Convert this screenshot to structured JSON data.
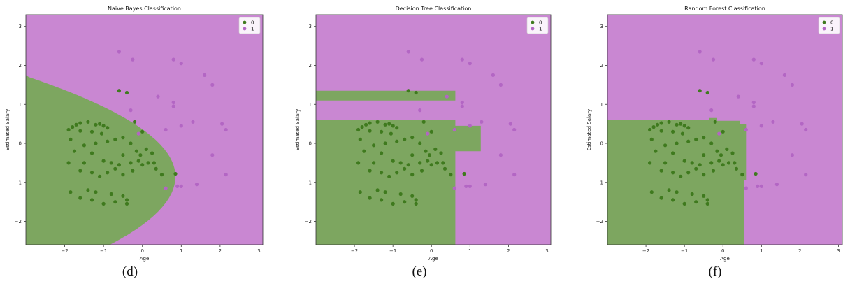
{
  "chart_data": [
    {
      "type": "scatter",
      "title": "Naive Bayes Classification",
      "xlabel": "Age",
      "ylabel": "Estimated Salary",
      "xlim": [
        -3,
        3.1
      ],
      "ylim": [
        -2.6,
        3.3
      ],
      "xticks": [
        -2,
        -1,
        0,
        1,
        2,
        3
      ],
      "yticks": [
        -2,
        -1,
        0,
        1,
        2,
        3
      ],
      "legend": {
        "position": "top-right",
        "entries": [
          "0",
          "1"
        ]
      },
      "region_colors": {
        "0": "#7da660",
        "1": "#c987d2"
      },
      "point_colors": {
        "0": "#3f7a1e",
        "1": "#b366c4"
      },
      "caption": "(d)",
      "series": [
        {
          "name": "0",
          "points": [
            [
              -1.9,
              0.35
            ],
            [
              -1.8,
              0.42
            ],
            [
              -1.7,
              0.48
            ],
            [
              -1.6,
              0.52
            ],
            [
              -1.4,
              0.55
            ],
            [
              -1.2,
              0.48
            ],
            [
              -1.1,
              0.5
            ],
            [
              -1.0,
              0.45
            ],
            [
              -0.9,
              0.4
            ],
            [
              -1.05,
              0.25
            ],
            [
              -1.3,
              0.3
            ],
            [
              -1.6,
              0.32
            ],
            [
              -1.85,
              0.1
            ],
            [
              -1.5,
              -0.05
            ],
            [
              -1.2,
              0.0
            ],
            [
              -0.9,
              0.05
            ],
            [
              -0.7,
              0.1
            ],
            [
              -0.5,
              0.15
            ],
            [
              -0.3,
              0.0
            ],
            [
              -0.15,
              -0.2
            ],
            [
              -0.05,
              -0.3
            ],
            [
              0.1,
              -0.15
            ],
            [
              0.25,
              -0.25
            ],
            [
              0.3,
              -0.5
            ],
            [
              0.15,
              -0.5
            ],
            [
              -0.1,
              -0.45
            ],
            [
              -0.3,
              -0.5
            ],
            [
              -0.5,
              -0.3
            ],
            [
              -0.6,
              -0.55
            ],
            [
              -0.8,
              -0.5
            ],
            [
              -1.0,
              -0.45
            ],
            [
              -1.3,
              -0.25
            ],
            [
              -1.5,
              -0.5
            ],
            [
              -1.75,
              -0.2
            ],
            [
              -1.9,
              -0.5
            ],
            [
              -1.6,
              -0.7
            ],
            [
              -1.3,
              -0.75
            ],
            [
              -1.1,
              -0.85
            ],
            [
              -0.9,
              -0.75
            ],
            [
              -0.7,
              -0.65
            ],
            [
              -0.5,
              -0.8
            ],
            [
              -0.25,
              -0.7
            ],
            [
              0.0,
              -0.55
            ],
            [
              0.35,
              -0.65
            ],
            [
              0.5,
              -0.8
            ],
            [
              -1.4,
              -1.2
            ],
            [
              -1.2,
              -1.25
            ],
            [
              -0.8,
              -1.3
            ],
            [
              -0.5,
              -1.35
            ],
            [
              -0.4,
              -1.45
            ],
            [
              -0.4,
              -1.55
            ],
            [
              -0.7,
              -1.5
            ],
            [
              -1.0,
              -1.55
            ],
            [
              -1.3,
              -1.45
            ],
            [
              -1.6,
              -1.4
            ],
            [
              -1.85,
              -1.25
            ],
            [
              -0.6,
              1.35
            ],
            [
              -0.4,
              1.3
            ],
            [
              0.0,
              0.3
            ],
            [
              -0.2,
              0.55
            ],
            [
              0.85,
              -0.78
            ]
          ]
        },
        {
          "name": "1",
          "points": [
            [
              -0.6,
              2.35
            ],
            [
              -0.25,
              2.15
            ],
            [
              0.8,
              2.15
            ],
            [
              1.0,
              2.05
            ],
            [
              1.6,
              1.75
            ],
            [
              1.8,
              1.5
            ],
            [
              -0.3,
              0.85
            ],
            [
              0.4,
              1.2
            ],
            [
              0.8,
              1.05
            ],
            [
              0.8,
              0.95
            ],
            [
              0.9,
              -1.1
            ],
            [
              -0.1,
              0.25
            ],
            [
              0.6,
              0.35
            ],
            [
              1.0,
              0.45
            ],
            [
              1.3,
              0.55
            ],
            [
              2.05,
              0.5
            ],
            [
              2.15,
              0.35
            ],
            [
              1.8,
              -0.3
            ],
            [
              2.15,
              -0.8
            ],
            [
              1.0,
              -1.1
            ],
            [
              1.4,
              -1.05
            ],
            [
              0.6,
              -1.15
            ]
          ]
        }
      ]
    },
    {
      "type": "scatter",
      "title": "Decision Tree Classification",
      "xlabel": "Age",
      "ylabel": "Estimated Salary",
      "xlim": [
        -3,
        3.1
      ],
      "ylim": [
        -2.6,
        3.3
      ],
      "xticks": [
        -2,
        -1,
        0,
        1,
        2,
        3
      ],
      "yticks": [
        -2,
        -1,
        0,
        1,
        2,
        3
      ],
      "legend": {
        "position": "top-right",
        "entries": [
          "0",
          "1"
        ]
      },
      "region_colors": {
        "0": "#7da660",
        "1": "#c987d2"
      },
      "point_colors": {
        "0": "#3f7a1e",
        "1": "#b366c4"
      },
      "caption": "(e)",
      "series": [
        {
          "name": "0",
          "points": [
            [
              -1.9,
              0.35
            ],
            [
              -1.8,
              0.42
            ],
            [
              -1.7,
              0.48
            ],
            [
              -1.6,
              0.52
            ],
            [
              -1.4,
              0.55
            ],
            [
              -1.2,
              0.48
            ],
            [
              -1.1,
              0.5
            ],
            [
              -1.0,
              0.45
            ],
            [
              -0.9,
              0.4
            ],
            [
              -1.05,
              0.25
            ],
            [
              -1.3,
              0.3
            ],
            [
              -1.6,
              0.32
            ],
            [
              -1.85,
              0.1
            ],
            [
              -1.5,
              -0.05
            ],
            [
              -1.2,
              0.0
            ],
            [
              -0.9,
              0.05
            ],
            [
              -0.7,
              0.1
            ],
            [
              -0.5,
              0.15
            ],
            [
              -0.3,
              0.0
            ],
            [
              -0.15,
              -0.2
            ],
            [
              -0.05,
              -0.3
            ],
            [
              0.1,
              -0.15
            ],
            [
              0.25,
              -0.25
            ],
            [
              0.3,
              -0.5
            ],
            [
              0.15,
              -0.5
            ],
            [
              -0.1,
              -0.45
            ],
            [
              -0.3,
              -0.5
            ],
            [
              -0.5,
              -0.3
            ],
            [
              -0.6,
              -0.55
            ],
            [
              -0.8,
              -0.5
            ],
            [
              -1.0,
              -0.45
            ],
            [
              -1.3,
              -0.25
            ],
            [
              -1.5,
              -0.5
            ],
            [
              -1.75,
              -0.2
            ],
            [
              -1.9,
              -0.5
            ],
            [
              -1.6,
              -0.7
            ],
            [
              -1.3,
              -0.75
            ],
            [
              -1.1,
              -0.85
            ],
            [
              -0.9,
              -0.75
            ],
            [
              -0.7,
              -0.65
            ],
            [
              -0.5,
              -0.8
            ],
            [
              -0.25,
              -0.7
            ],
            [
              0.0,
              -0.55
            ],
            [
              0.35,
              -0.65
            ],
            [
              0.5,
              -0.8
            ],
            [
              -1.4,
              -1.2
            ],
            [
              -1.2,
              -1.25
            ],
            [
              -0.8,
              -1.3
            ],
            [
              -0.5,
              -1.35
            ],
            [
              -0.4,
              -1.45
            ],
            [
              -0.4,
              -1.55
            ],
            [
              -0.7,
              -1.5
            ],
            [
              -1.0,
              -1.55
            ],
            [
              -1.3,
              -1.45
            ],
            [
              -1.6,
              -1.4
            ],
            [
              -1.85,
              -1.25
            ],
            [
              -0.6,
              1.35
            ],
            [
              -0.4,
              1.3
            ],
            [
              0.0,
              0.3
            ],
            [
              -0.2,
              0.55
            ],
            [
              0.85,
              -0.78
            ]
          ]
        },
        {
          "name": "1",
          "points": [
            [
              -0.6,
              2.35
            ],
            [
              -0.25,
              2.15
            ],
            [
              0.8,
              2.15
            ],
            [
              1.0,
              2.05
            ],
            [
              1.6,
              1.75
            ],
            [
              1.8,
              1.5
            ],
            [
              -0.3,
              0.85
            ],
            [
              0.4,
              1.2
            ],
            [
              0.8,
              1.05
            ],
            [
              0.8,
              0.95
            ],
            [
              0.9,
              -1.1
            ],
            [
              -0.1,
              0.25
            ],
            [
              0.6,
              0.35
            ],
            [
              1.0,
              0.45
            ],
            [
              1.3,
              0.55
            ],
            [
              2.05,
              0.5
            ],
            [
              2.15,
              0.35
            ],
            [
              1.8,
              -0.3
            ],
            [
              2.15,
              -0.8
            ],
            [
              1.0,
              -1.1
            ],
            [
              1.4,
              -1.05
            ],
            [
              0.6,
              -1.15
            ]
          ]
        }
      ]
    },
    {
      "type": "scatter",
      "title": "Random Forest Classification",
      "xlabel": "Age",
      "ylabel": "Estimated Salary",
      "xlim": [
        -3,
        3.1
      ],
      "ylim": [
        -2.6,
        3.3
      ],
      "xticks": [
        -2,
        -1,
        0,
        1,
        2,
        3
      ],
      "yticks": [
        -2,
        -1,
        0,
        1,
        2,
        3
      ],
      "legend": {
        "position": "top-right",
        "entries": [
          "0",
          "1"
        ]
      },
      "region_colors": {
        "0": "#7da660",
        "1": "#c987d2"
      },
      "point_colors": {
        "0": "#3f7a1e",
        "1": "#b366c4"
      },
      "caption": "(f)",
      "series": [
        {
          "name": "0",
          "points": [
            [
              -1.9,
              0.35
            ],
            [
              -1.8,
              0.42
            ],
            [
              -1.7,
              0.48
            ],
            [
              -1.6,
              0.52
            ],
            [
              -1.4,
              0.55
            ],
            [
              -1.2,
              0.48
            ],
            [
              -1.1,
              0.5
            ],
            [
              -1.0,
              0.45
            ],
            [
              -0.9,
              0.4
            ],
            [
              -1.05,
              0.25
            ],
            [
              -1.3,
              0.3
            ],
            [
              -1.6,
              0.32
            ],
            [
              -1.85,
              0.1
            ],
            [
              -1.5,
              -0.05
            ],
            [
              -1.2,
              0.0
            ],
            [
              -0.9,
              0.05
            ],
            [
              -0.7,
              0.1
            ],
            [
              -0.5,
              0.15
            ],
            [
              -0.3,
              0.0
            ],
            [
              -0.15,
              -0.2
            ],
            [
              -0.05,
              -0.3
            ],
            [
              0.1,
              -0.15
            ],
            [
              0.25,
              -0.25
            ],
            [
              0.3,
              -0.5
            ],
            [
              0.15,
              -0.5
            ],
            [
              -0.1,
              -0.45
            ],
            [
              -0.3,
              -0.5
            ],
            [
              -0.5,
              -0.3
            ],
            [
              -0.6,
              -0.55
            ],
            [
              -0.8,
              -0.5
            ],
            [
              -1.0,
              -0.45
            ],
            [
              -1.3,
              -0.25
            ],
            [
              -1.5,
              -0.5
            ],
            [
              -1.75,
              -0.2
            ],
            [
              -1.9,
              -0.5
            ],
            [
              -1.6,
              -0.7
            ],
            [
              -1.3,
              -0.75
            ],
            [
              -1.1,
              -0.85
            ],
            [
              -0.9,
              -0.75
            ],
            [
              -0.7,
              -0.65
            ],
            [
              -0.5,
              -0.8
            ],
            [
              -0.25,
              -0.7
            ],
            [
              0.0,
              -0.55
            ],
            [
              0.35,
              -0.65
            ],
            [
              0.5,
              -0.8
            ],
            [
              -1.4,
              -1.2
            ],
            [
              -1.2,
              -1.25
            ],
            [
              -0.8,
              -1.3
            ],
            [
              -0.5,
              -1.35
            ],
            [
              -0.4,
              -1.45
            ],
            [
              -0.4,
              -1.55
            ],
            [
              -0.7,
              -1.5
            ],
            [
              -1.0,
              -1.55
            ],
            [
              -1.3,
              -1.45
            ],
            [
              -1.6,
              -1.4
            ],
            [
              -1.85,
              -1.25
            ],
            [
              -0.6,
              1.35
            ],
            [
              -0.4,
              1.3
            ],
            [
              0.0,
              0.3
            ],
            [
              -0.2,
              0.55
            ],
            [
              0.85,
              -0.78
            ]
          ]
        },
        {
          "name": "1",
          "points": [
            [
              -0.6,
              2.35
            ],
            [
              -0.25,
              2.15
            ],
            [
              0.8,
              2.15
            ],
            [
              1.0,
              2.05
            ],
            [
              1.6,
              1.75
            ],
            [
              1.8,
              1.5
            ],
            [
              -0.3,
              0.85
            ],
            [
              0.4,
              1.2
            ],
            [
              0.8,
              1.05
            ],
            [
              0.8,
              0.95
            ],
            [
              0.9,
              -1.1
            ],
            [
              -0.1,
              0.25
            ],
            [
              0.6,
              0.35
            ],
            [
              1.0,
              0.45
            ],
            [
              1.3,
              0.55
            ],
            [
              2.05,
              0.5
            ],
            [
              2.15,
              0.35
            ],
            [
              1.8,
              -0.3
            ],
            [
              2.15,
              -0.8
            ],
            [
              1.0,
              -1.1
            ],
            [
              1.4,
              -1.05
            ],
            [
              0.6,
              -1.15
            ]
          ]
        }
      ]
    }
  ]
}
